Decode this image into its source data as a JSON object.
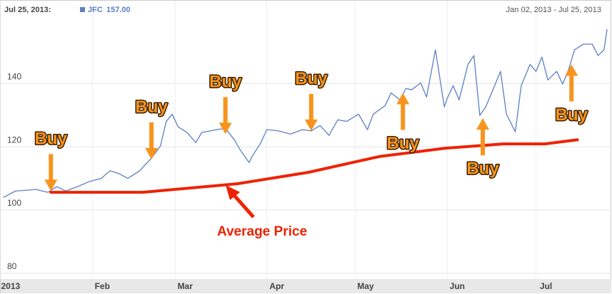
{
  "chart_data": {
    "type": "line",
    "header": {
      "date": "Jul 25, 2013:",
      "value_label": "157.00",
      "range": "Jan 02, 2013 - Jul 25, 2013"
    },
    "xlim": [
      1,
      205
    ],
    "xticks": [
      {
        "value": 0,
        "label": "2013"
      },
      {
        "value": 31,
        "label": "Feb"
      },
      {
        "value": 59,
        "label": "Mar"
      },
      {
        "value": 90,
        "label": "Apr"
      },
      {
        "value": 120,
        "label": "May"
      },
      {
        "value": 151,
        "label": "Jun"
      },
      {
        "value": 181,
        "label": "Jul"
      }
    ],
    "ylim": [
      80,
      165
    ],
    "yticks": [
      80,
      100,
      120,
      140
    ],
    "grid": true,
    "series": [
      {
        "name": "JFC",
        "color": "#5b7fc7",
        "x": [
          1,
          5,
          12,
          16,
          19,
          22,
          26,
          30,
          34,
          37,
          40,
          43,
          47,
          51,
          54,
          56,
          58,
          60,
          63,
          66,
          68,
          73,
          76,
          79,
          81,
          84,
          85,
          88,
          90,
          94,
          98,
          102,
          105,
          108,
          111,
          114,
          117,
          121,
          124,
          126,
          130,
          132,
          135,
          137,
          139,
          142,
          144,
          147,
          150,
          151,
          153,
          155,
          158,
          160,
          162,
          164,
          166,
          169,
          171,
          174,
          176,
          179,
          181,
          183,
          185,
          188,
          190,
          192,
          194,
          197,
          200,
          202,
          204,
          205
        ],
        "values": [
          104,
          106,
          106.5,
          105.6,
          107.4,
          106,
          107.4,
          109,
          110,
          112.4,
          111.5,
          110,
          112.4,
          116.4,
          120.2,
          128,
          130.3,
          126.3,
          124.5,
          121.3,
          124.5,
          125.4,
          125.8,
          122.2,
          119,
          115,
          116.9,
          121.3,
          125.4,
          125,
          124,
          125.4,
          125,
          126.7,
          123.6,
          128.5,
          128,
          130.3,
          125.4,
          130.3,
          133,
          137,
          134.8,
          138.4,
          138,
          140.2,
          135.7,
          150.6,
          132.6,
          135.3,
          139.3,
          134.8,
          146,
          148.8,
          129.9,
          132.6,
          137,
          143.8,
          130.3,
          124.7,
          139.3,
          146,
          143.8,
          148.3,
          141.1,
          143.8,
          139.8,
          144.3,
          150.6,
          152.4,
          152.4,
          148.8,
          150.6,
          157
        ]
      },
      {
        "name": "Average Price",
        "color": "#ee2200",
        "x": [
          17,
          48,
          80,
          104,
          128,
          150,
          170,
          184,
          195
        ],
        "values": [
          105.6,
          105.6,
          108.3,
          111.9,
          116.9,
          119.5,
          120.9,
          120.9,
          122.2
        ]
      }
    ],
    "annotations": [
      {
        "text": "Buy",
        "x": 17,
        "y": 106,
        "direction": "down"
      },
      {
        "text": "Buy",
        "x": 51,
        "y": 116,
        "direction": "down"
      },
      {
        "text": "Buy",
        "x": 76,
        "y": 124,
        "direction": "down"
      },
      {
        "text": "Buy",
        "x": 105,
        "y": 125,
        "direction": "down"
      },
      {
        "text": "Buy",
        "x": 136,
        "y": 137,
        "direction": "up"
      },
      {
        "text": "Buy",
        "x": 163,
        "y": 129,
        "direction": "up"
      },
      {
        "text": "Buy",
        "x": 193,
        "y": 146,
        "direction": "up"
      }
    ]
  }
}
